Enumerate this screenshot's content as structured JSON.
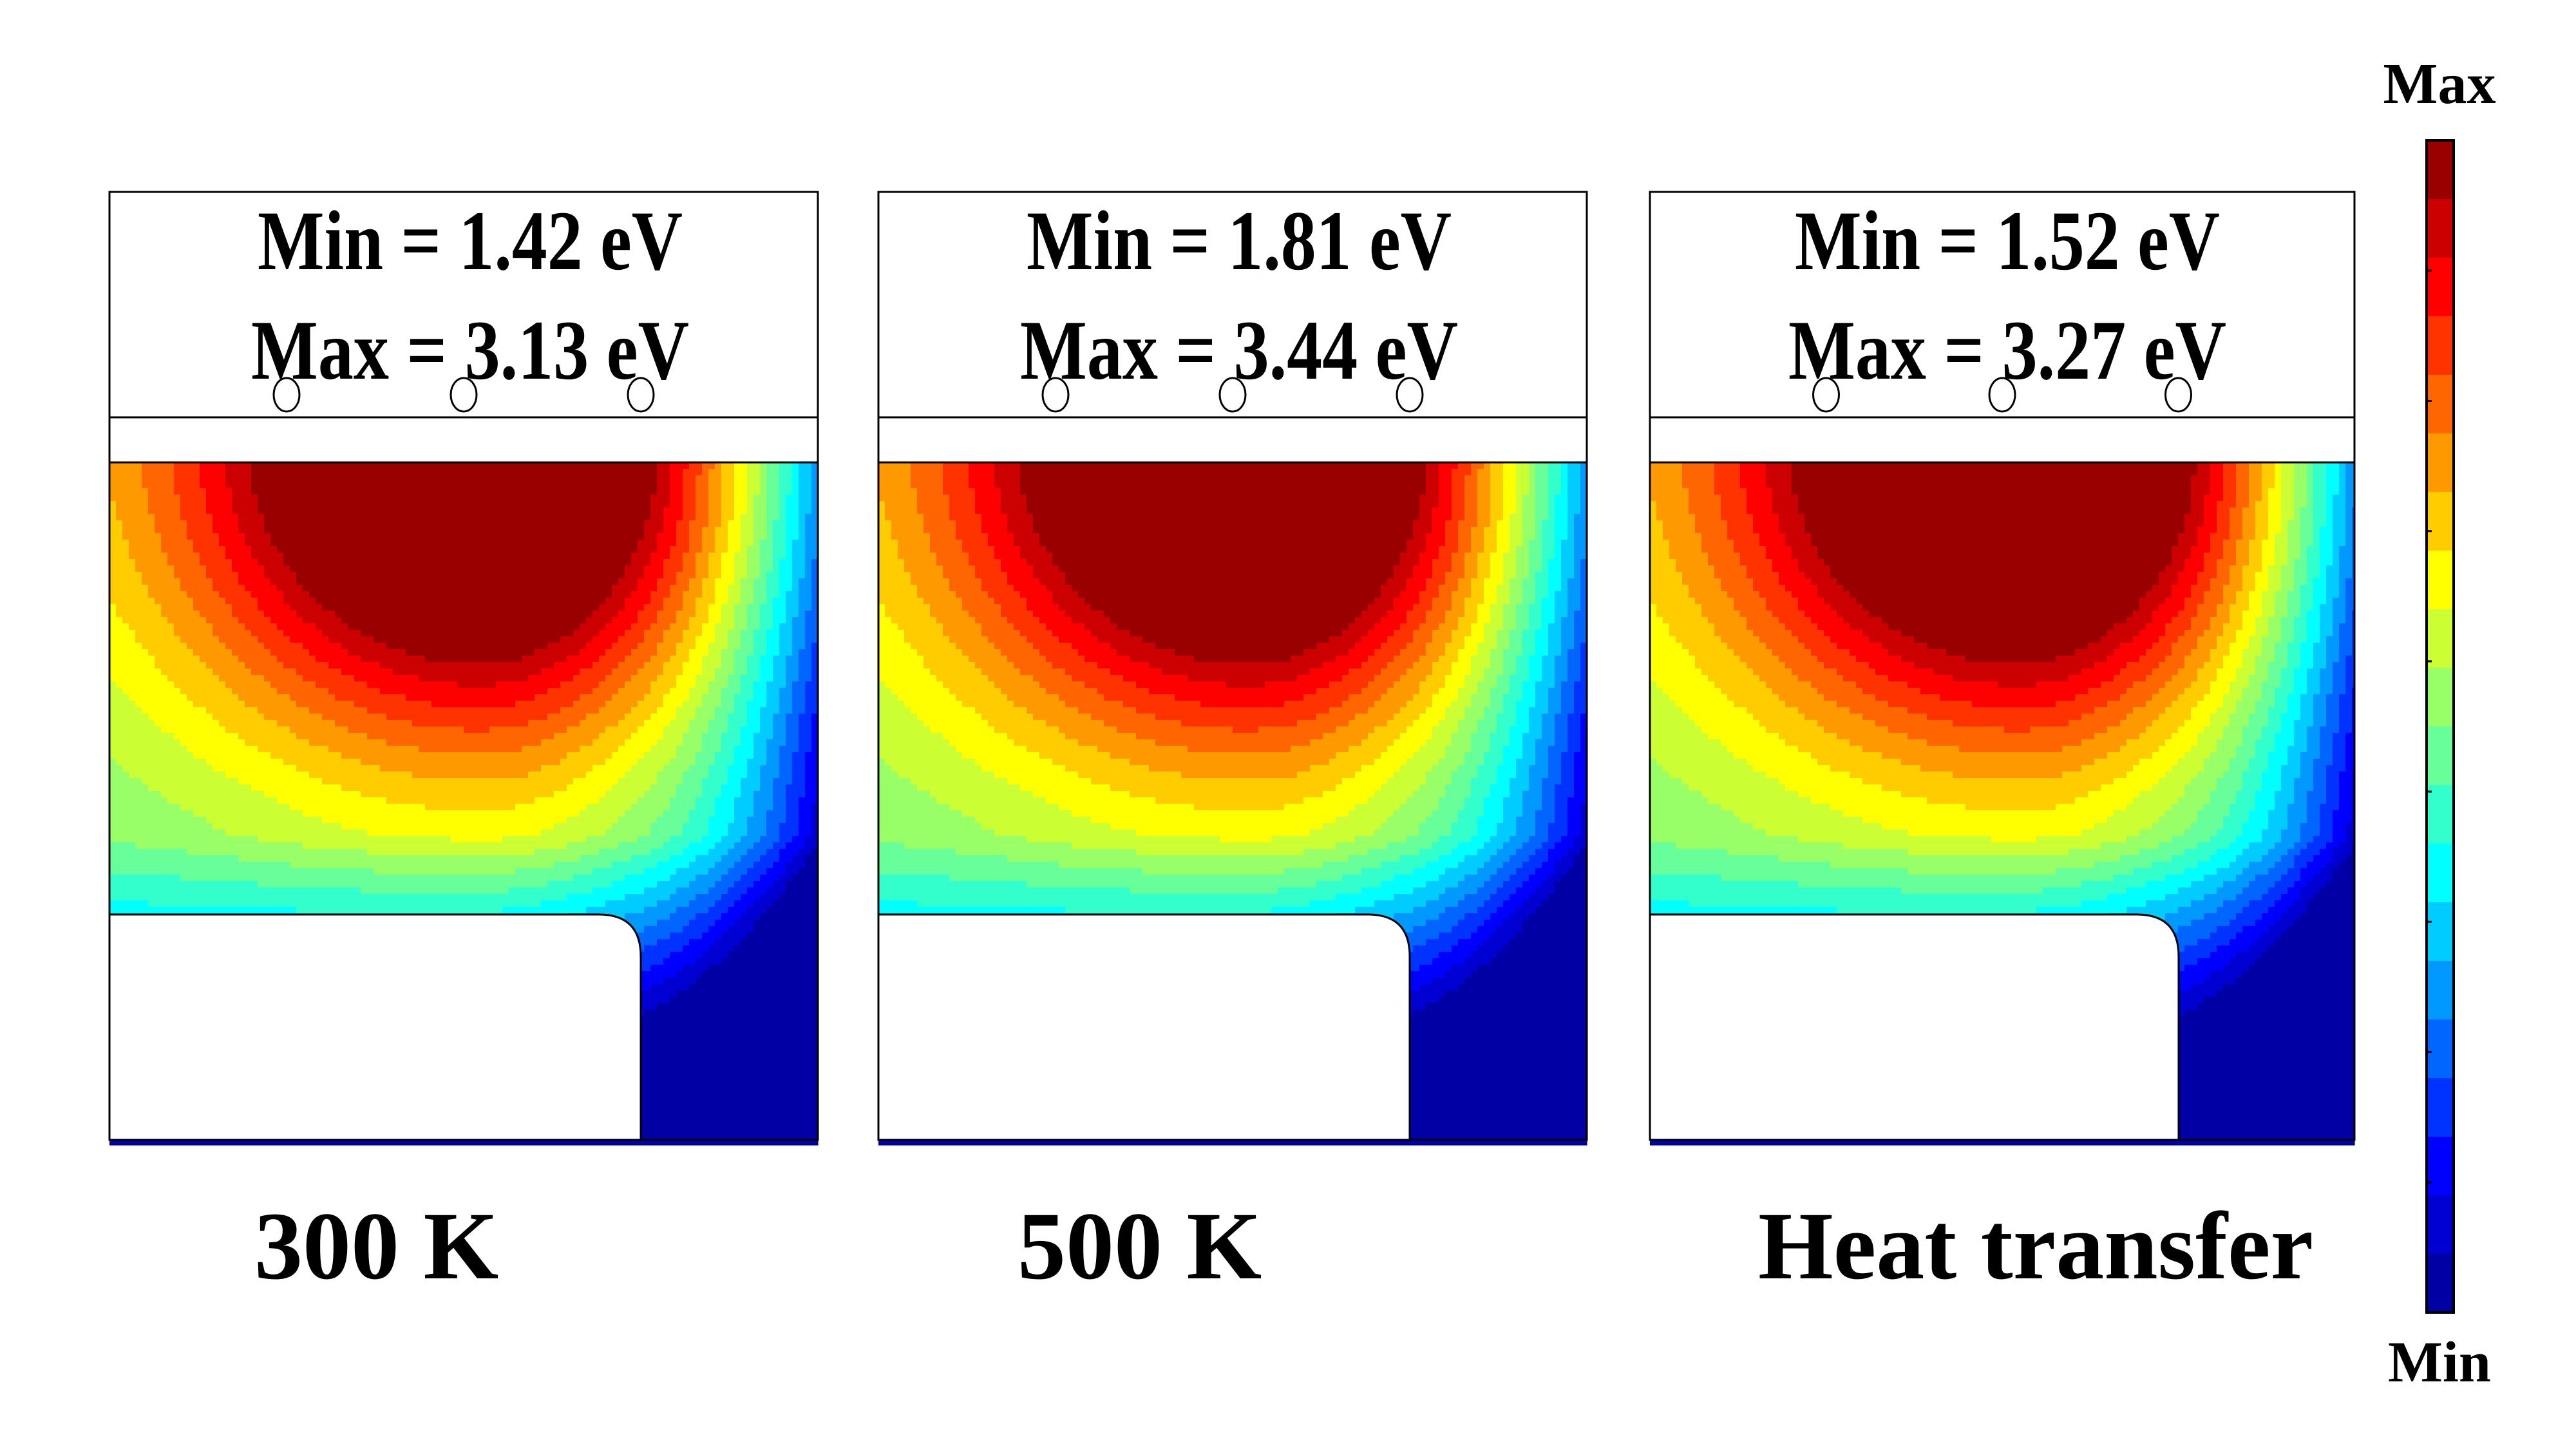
{
  "panels": [
    {
      "id": "p300",
      "min_label": "Min = 1.42 eV",
      "max_label": "Max = 3.13 eV",
      "caption": "300 K",
      "min_value_eV": 1.42,
      "max_value_eV": 3.13
    },
    {
      "id": "p500",
      "min_label": "Min = 1.81 eV",
      "max_label": "Max = 3.44 eV",
      "caption": "500 K",
      "min_value_eV": 1.81,
      "max_value_eV": 3.44
    },
    {
      "id": "pheat",
      "min_label": "Min = 1.52 eV",
      "max_label": "Max = 3.27 eV",
      "caption": "Heat transfer",
      "min_value_eV": 1.52,
      "max_value_eV": 3.27
    }
  ],
  "colorbar": {
    "max_label": "Max",
    "min_label": "Min",
    "colormap": "jet",
    "levels": 20,
    "colors": [
      "#00008f",
      "#0000ff",
      "#0080ff",
      "#00ffff",
      "#80ff80",
      "#ffff00",
      "#ff8000",
      "#ff0000",
      "#800000"
    ]
  }
}
